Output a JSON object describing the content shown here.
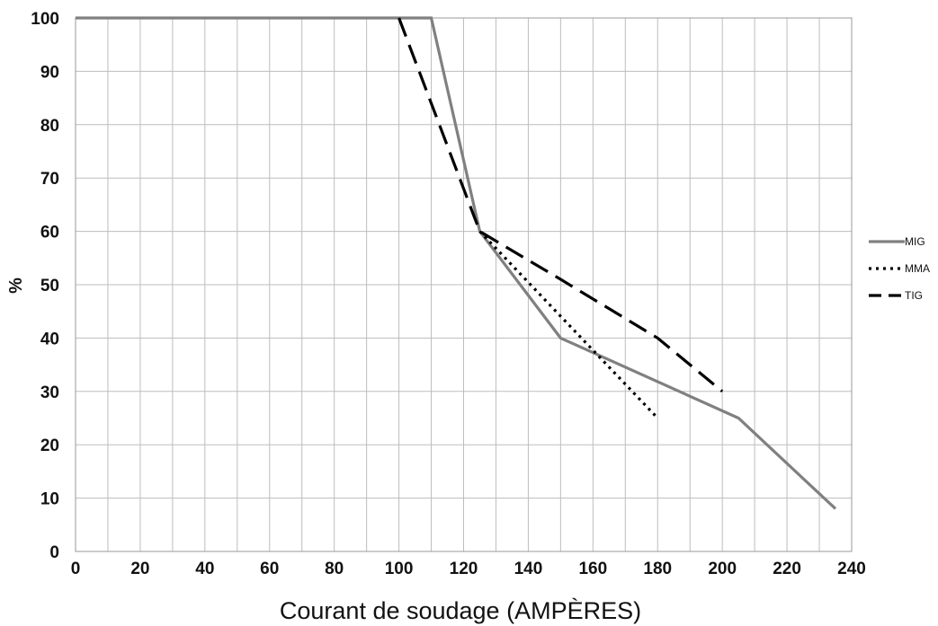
{
  "chart_data": {
    "type": "line",
    "xlabel": "Courant de soudage (AMPÈRES)",
    "ylabel": "%",
    "xlim": [
      0,
      240
    ],
    "ylim": [
      0,
      100
    ],
    "xticks": [
      "0",
      "20",
      "40",
      "60",
      "80",
      "100",
      "120",
      "140",
      "160",
      "180",
      "200",
      "220",
      "240"
    ],
    "yticks": [
      "0",
      "10",
      "20",
      "30",
      "40",
      "50",
      "60",
      "70",
      "80",
      "90",
      "100"
    ],
    "grid": true,
    "x_minor_step": 10,
    "legend_position": "right",
    "series": [
      {
        "name": "MIG",
        "style": "solid",
        "color": "#808080",
        "points": [
          [
            0,
            100
          ],
          [
            110,
            100
          ],
          [
            125,
            60
          ],
          [
            150,
            40
          ],
          [
            205,
            25
          ],
          [
            235,
            8
          ]
        ]
      },
      {
        "name": "MMA",
        "style": "dotted",
        "color": "#000000",
        "points": [
          [
            125,
            60
          ],
          [
            180,
            25
          ]
        ]
      },
      {
        "name": "TIG",
        "style": "dashed",
        "color": "#000000",
        "points": [
          [
            100,
            100
          ],
          [
            125,
            60
          ],
          [
            150,
            51
          ],
          [
            180,
            40
          ],
          [
            200,
            30
          ]
        ]
      }
    ]
  }
}
